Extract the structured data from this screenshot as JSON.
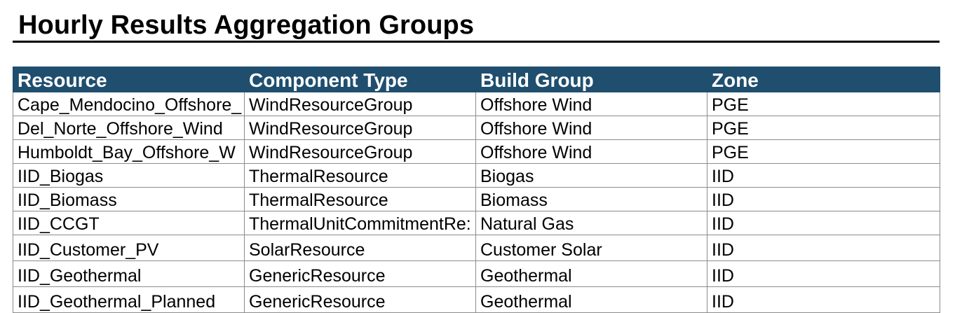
{
  "title": "Hourly Results Aggregation Groups",
  "colors": {
    "header_bg": "#1f4e6e",
    "header_text": "#ffffff",
    "grid_lines": "#8c8c8c"
  },
  "table": {
    "headers": [
      "Resource",
      "Component Type",
      "Build Group",
      "Zone"
    ],
    "rows": [
      [
        "Cape_Mendocino_Offshore_",
        "WindResourceGroup",
        "Offshore Wind",
        "PGE"
      ],
      [
        "Del_Norte_Offshore_Wind",
        "WindResourceGroup",
        "Offshore Wind",
        "PGE"
      ],
      [
        "Humboldt_Bay_Offshore_W",
        "WindResourceGroup",
        "Offshore Wind",
        "PGE"
      ],
      [
        "IID_Biogas",
        "ThermalResource",
        "Biogas",
        "IID"
      ],
      [
        "IID_Biomass",
        "ThermalResource",
        "Biomass",
        "IID"
      ],
      [
        "IID_CCGT",
        "ThermalUnitCommitmentRe:",
        "Natural Gas",
        "IID"
      ],
      [
        "IID_Customer_PV",
        "SolarResource",
        "Customer Solar",
        "IID"
      ],
      [
        "IID_Geothermal",
        "GenericResource",
        "Geothermal",
        "IID"
      ],
      [
        "IID_Geothermal_Planned",
        "GenericResource",
        "Geothermal",
        "IID"
      ]
    ]
  }
}
